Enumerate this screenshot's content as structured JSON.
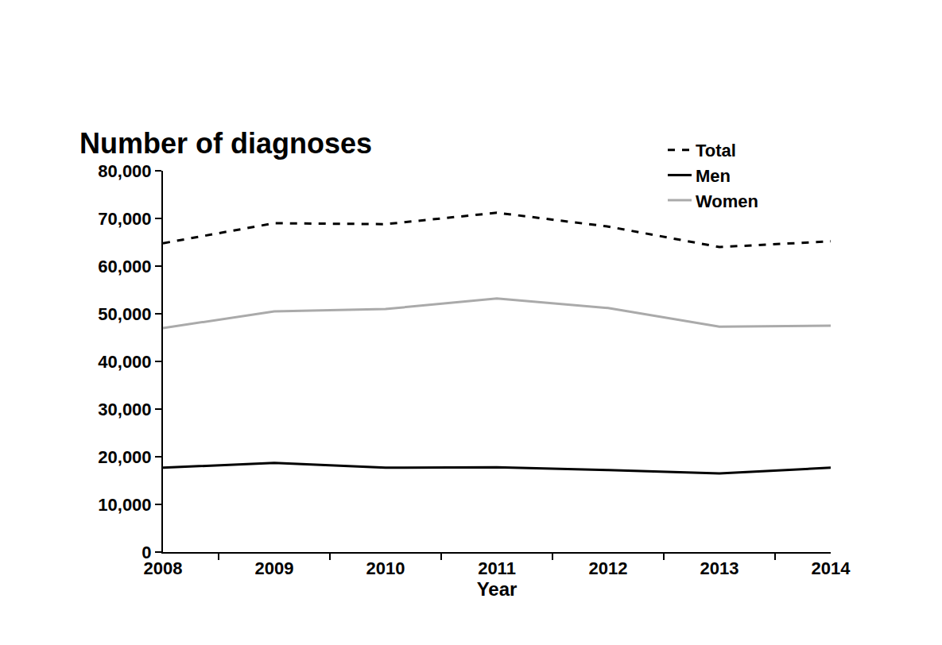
{
  "chart_data": {
    "type": "line",
    "title": "Number of diagnoses",
    "x_label": "Year",
    "categories": [
      "2008",
      "2009",
      "2010",
      "2011",
      "2012",
      "2013",
      "2014"
    ],
    "series": [
      {
        "name": "Total",
        "color": "#000000",
        "line_style": "dash",
        "values": [
          64800,
          69000,
          68800,
          71200,
          68300,
          64000,
          65200
        ]
      },
      {
        "name": "Men",
        "color": "#000000",
        "line_style": "solid",
        "values": [
          17700,
          18700,
          17700,
          17800,
          17200,
          16500,
          17700
        ]
      },
      {
        "name": "Women",
        "color": "#aaaaaa",
        "line_style": "solid",
        "values": [
          47000,
          50500,
          51000,
          53200,
          51200,
          47300,
          47500
        ]
      }
    ],
    "ylim": [
      0,
      80000
    ],
    "yticks": [
      0,
      {
        "value": 10000,
        "label": "10,000"
      },
      {
        "value": 20000,
        "label": "20,000"
      },
      {
        "value": 30000,
        "label": "30,000"
      },
      {
        "value": 40000,
        "label": "40,000"
      },
      {
        "value": 50000,
        "label": "50,000"
      },
      {
        "value": 60000,
        "label": "60,000"
      },
      {
        "value": 70000,
        "label": "70,000"
      },
      {
        "value": 80000,
        "label": "80,000"
      }
    ],
    "grid": false,
    "legend": "top right"
  }
}
